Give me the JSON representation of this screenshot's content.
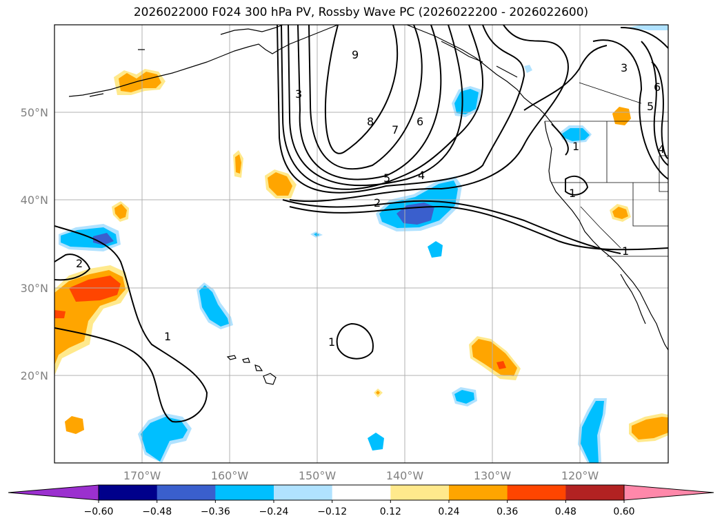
{
  "title": "2026022000 F024 300 hPa PV, Rossby Wave PC (2026022200 - 2026022600)",
  "lat_labels": [
    "50°N",
    "40°N",
    "30°N",
    "20°N"
  ],
  "lon_labels": [
    "170°W",
    "160°W",
    "150°W",
    "140°W",
    "130°W",
    "120°W"
  ],
  "colorbar": {
    "tick_labels": [
      "−0.60",
      "−0.48",
      "−0.36",
      "−0.24",
      "−0.12",
      "0.12",
      "0.24",
      "0.36",
      "0.48",
      "0.60"
    ],
    "colors": [
      "#9b30cf",
      "#00008b",
      "#3a5fcd",
      "#00bfff",
      "#b0e2ff",
      "#ffffff",
      "#ffe98c",
      "#ffa500",
      "#ff4500",
      "#b22222",
      "#ff88aa"
    ]
  },
  "contour_labels": [
    "9",
    "8",
    "7",
    "6",
    "5",
    "4",
    "3",
    "2",
    "1",
    "1",
    "1",
    "2",
    "3",
    "4",
    "5",
    "6",
    "1",
    "1"
  ],
  "colors": {
    "grid": "#b0b0b0",
    "land": "#000000",
    "contour": "#000000"
  }
}
